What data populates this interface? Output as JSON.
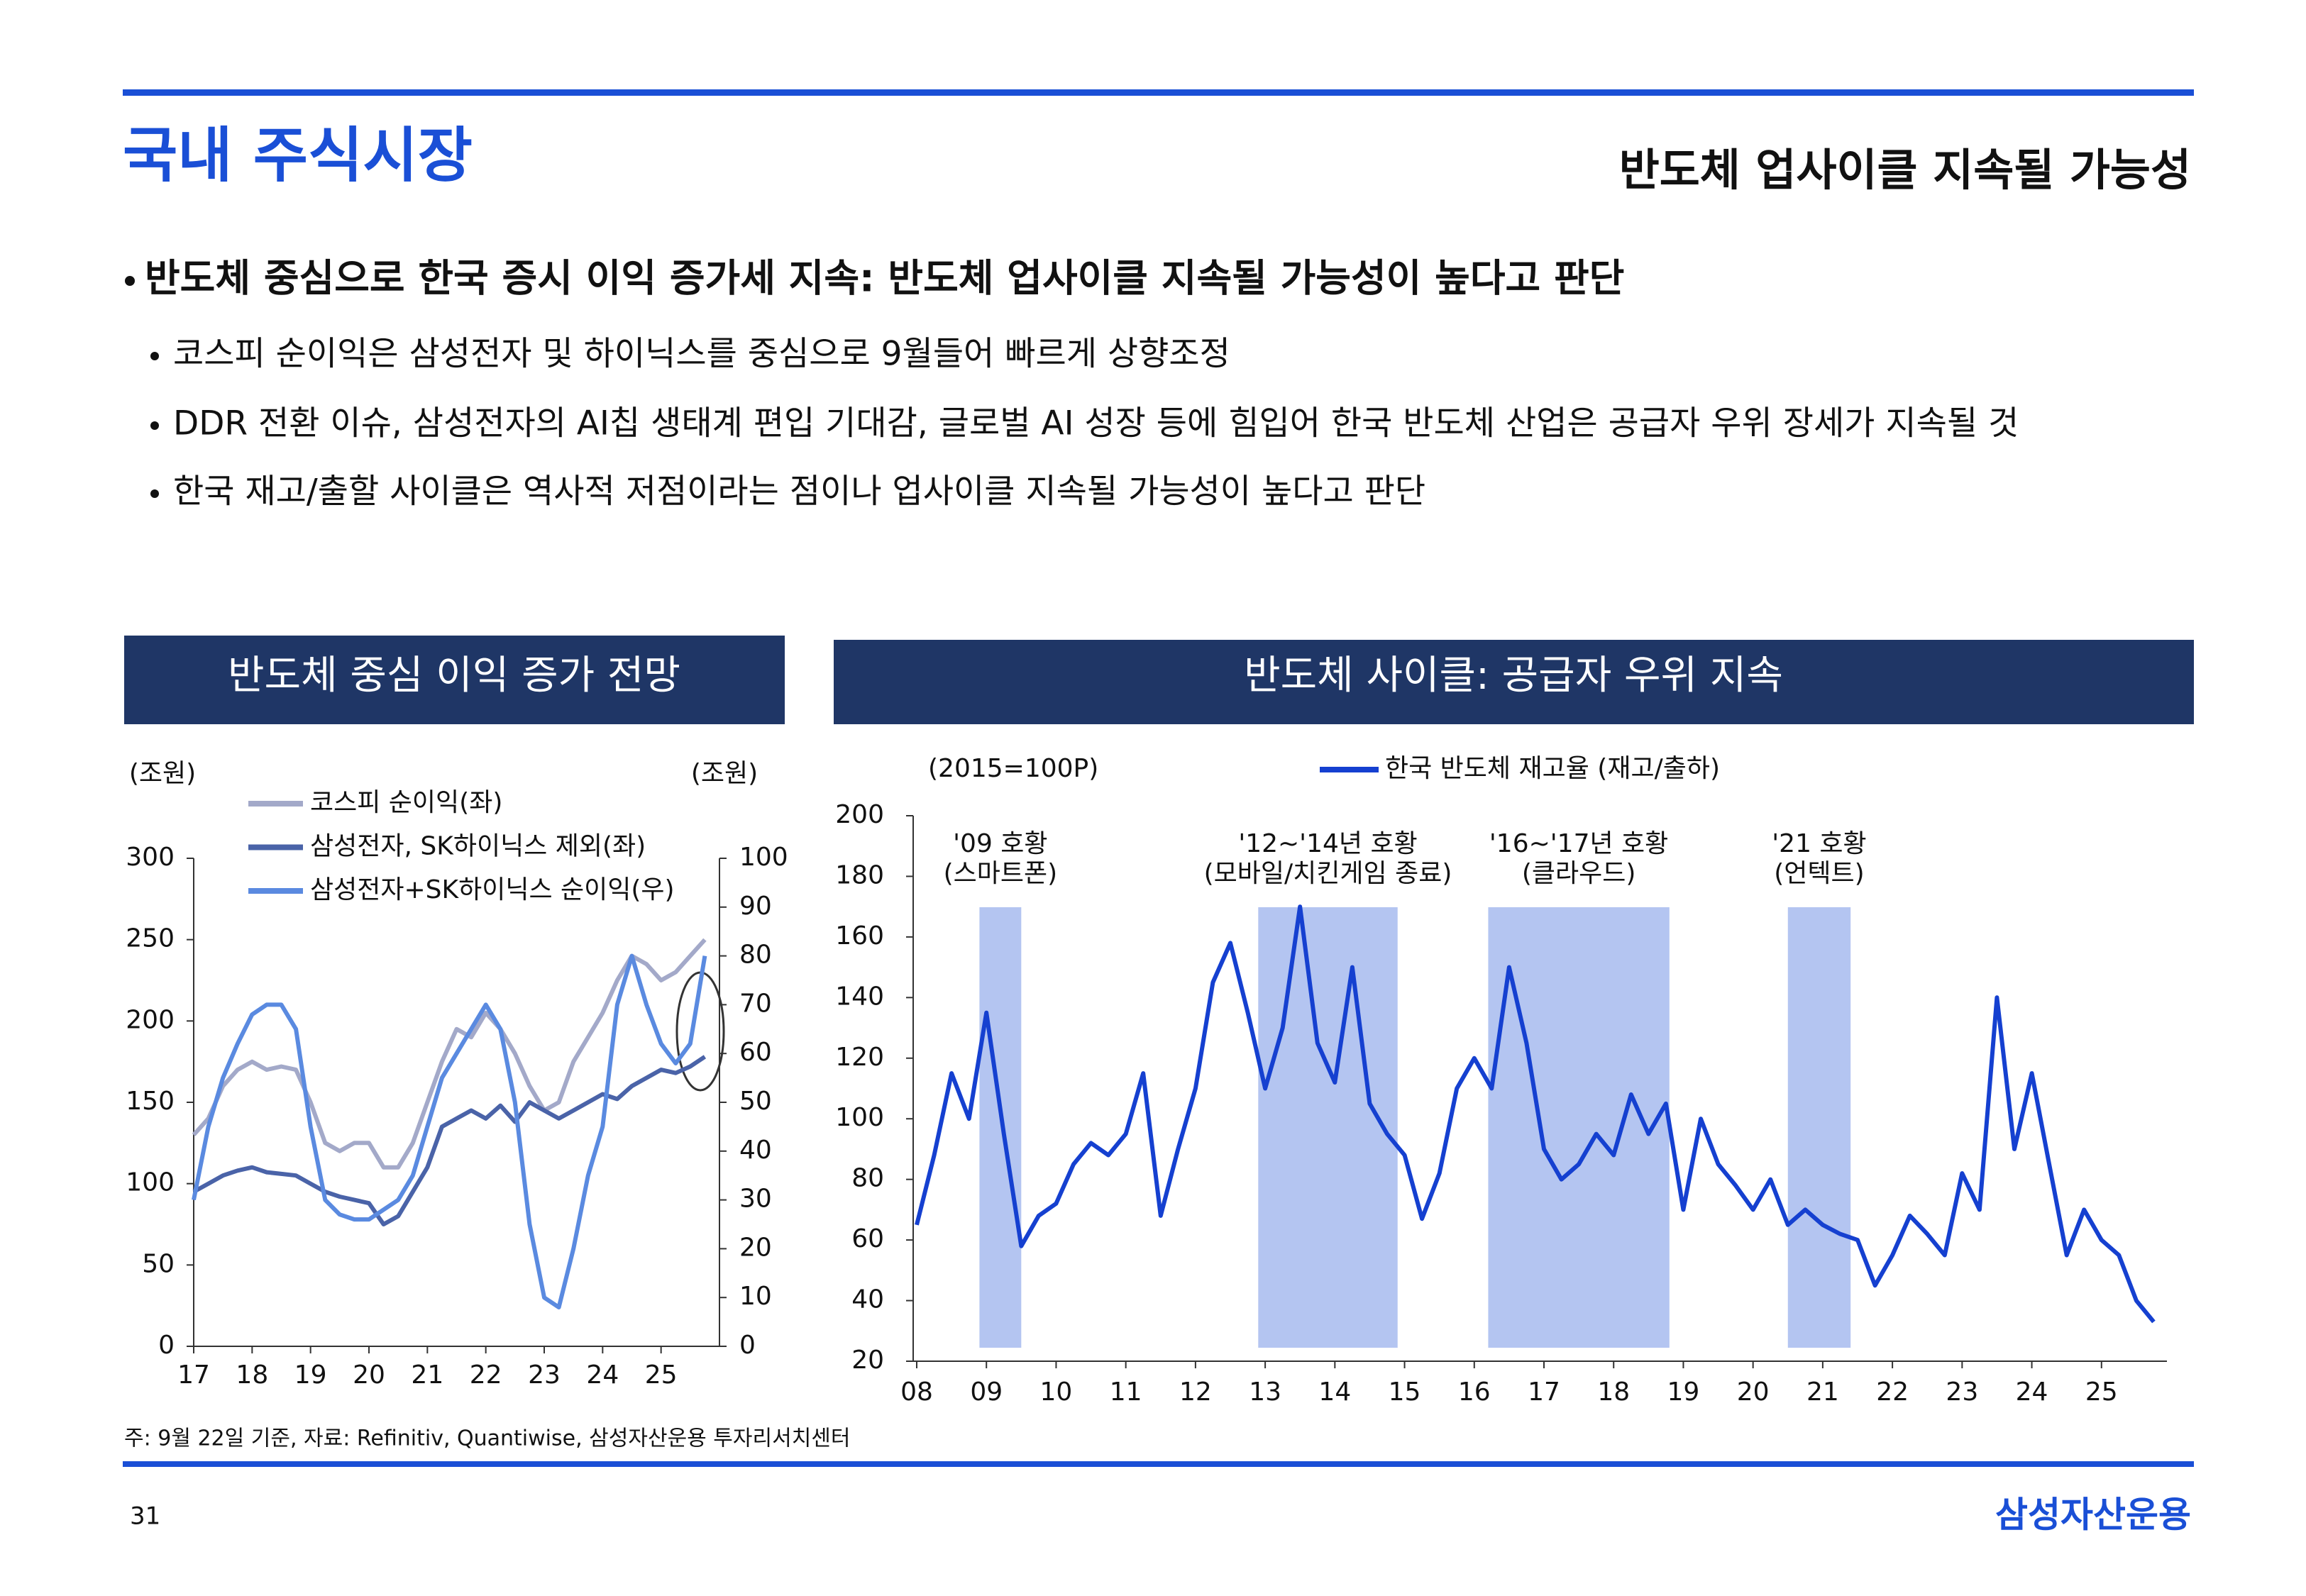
{
  "header": {
    "title": "국내 주식시장",
    "subtitle": "반도체 업사이클 지속될 가능성"
  },
  "bullets": {
    "main": "반도체 중심으로 한국 증시 이익 증가세 지속: 반도체 업사이클 지속될 가능성이 높다고 판단",
    "sub": [
      "코스피 순이익은 삼성전자 및 하이닉스를 중심으로 9월들어 빠르게 상향조정",
      "DDR 전환 이슈, 삼성전자의 AI칩 생태계 편입 기대감, 글로벌 AI 성장 등에 힘입어 한국 반도체 산업은 공급자 우위 장세가 지속될 것",
      "한국 재고/출할 사이클은 역사적 저점이라는 점이나 업사이클 지속될 가능성이 높다고 판단"
    ]
  },
  "chart_data": [
    {
      "type": "line",
      "title": "반도체 중심 이익 증가 전망",
      "ylabel": "(조원)",
      "y2label": "(조원)",
      "x": [
        2017,
        2017.25,
        2017.5,
        2017.75,
        2018,
        2018.25,
        2018.5,
        2018.75,
        2019,
        2019.25,
        2019.5,
        2019.75,
        2020,
        2020.25,
        2020.5,
        2020.75,
        2021,
        2021.25,
        2021.5,
        2021.75,
        2022,
        2022.25,
        2022.5,
        2022.75,
        2023,
        2023.25,
        2023.5,
        2023.75,
        2024,
        2024.25,
        2024.5,
        2024.75,
        2025,
        2025.25,
        2025.5,
        2025.75
      ],
      "xlim": [
        2017,
        2026
      ],
      "xticks": [
        {
          "value": 2017,
          "label": "17"
        },
        {
          "value": 2018,
          "label": "18"
        },
        {
          "value": 2019,
          "label": "19"
        },
        {
          "value": 2020,
          "label": "20"
        },
        {
          "value": 2021,
          "label": "21"
        },
        {
          "value": 2022,
          "label": "22"
        },
        {
          "value": 2023,
          "label": "23"
        },
        {
          "value": 2024,
          "label": "24"
        },
        {
          "value": 2025,
          "label": "25"
        }
      ],
      "ylim": [
        0,
        300
      ],
      "yticks": [
        0,
        50,
        100,
        150,
        200,
        250,
        300
      ],
      "y2lim": [
        0,
        100
      ],
      "y2ticks": [
        0,
        10,
        20,
        30,
        40,
        50,
        60,
        70,
        80,
        90,
        100
      ],
      "series": [
        {
          "name": "코스피 순이익(좌)",
          "color": "#a3a9c9",
          "values": [
            130,
            140,
            160,
            170,
            175,
            170,
            172,
            170,
            150,
            125,
            120,
            125,
            125,
            110,
            110,
            125,
            150,
            175,
            195,
            190,
            205,
            195,
            180,
            160,
            145,
            150,
            175,
            190,
            205,
            225,
            240,
            235,
            225,
            230,
            240,
            250
          ]
        },
        {
          "name": "삼성전자, SK하이닉스 제외(좌)",
          "color": "#4a63a8",
          "values": [
            95,
            100,
            105,
            108,
            110,
            107,
            106,
            105,
            100,
            95,
            92,
            90,
            88,
            75,
            80,
            95,
            110,
            135,
            140,
            145,
            140,
            148,
            138,
            150,
            145,
            140,
            145,
            150,
            155,
            152,
            160,
            165,
            170,
            168,
            172,
            178
          ]
        },
        {
          "name": "삼성전자+SK하이닉스 순이익(우)",
          "color": "#5a8ae0",
          "axis": "y2",
          "values": [
            30,
            45,
            55,
            62,
            68,
            70,
            70,
            65,
            45,
            30,
            27,
            26,
            26,
            28,
            30,
            35,
            45,
            55,
            60,
            65,
            70,
            65,
            50,
            25,
            10,
            8,
            20,
            35,
            45,
            70,
            80,
            70,
            62,
            58,
            62,
            80
          ]
        }
      ]
    },
    {
      "type": "line",
      "title": "반도체 사이클: 공급자 우위 지속",
      "ylabel": "(2015=100P)",
      "x": [
        2008,
        2008.25,
        2008.5,
        2008.75,
        2009,
        2009.25,
        2009.5,
        2009.75,
        2010,
        2010.25,
        2010.5,
        2010.75,
        2011,
        2011.25,
        2011.5,
        2011.75,
        2012,
        2012.25,
        2012.5,
        2012.75,
        2013,
        2013.25,
        2013.5,
        2013.75,
        2014,
        2014.25,
        2014.5,
        2014.75,
        2015,
        2015.25,
        2015.5,
        2015.75,
        2016,
        2016.25,
        2016.5,
        2016.75,
        2017,
        2017.25,
        2017.5,
        2017.75,
        2018,
        2018.25,
        2018.5,
        2018.75,
        2019,
        2019.25,
        2019.5,
        2019.75,
        2020,
        2020.25,
        2020.5,
        2020.75,
        2021,
        2021.25,
        2021.5,
        2021.75,
        2022,
        2022.25,
        2022.5,
        2022.75,
        2023,
        2023.25,
        2023.5,
        2023.75,
        2024,
        2024.25,
        2024.5,
        2024.75,
        2025,
        2025.25,
        2025.5,
        2025.75
      ],
      "xlim": [
        2008,
        2026
      ],
      "xticks": [
        {
          "value": 2008,
          "label": "08"
        },
        {
          "value": 2009,
          "label": "09"
        },
        {
          "value": 2010,
          "label": "10"
        },
        {
          "value": 2011,
          "label": "11"
        },
        {
          "value": 2012,
          "label": "12"
        },
        {
          "value": 2013,
          "label": "13"
        },
        {
          "value": 2014,
          "label": "14"
        },
        {
          "value": 2015,
          "label": "15"
        },
        {
          "value": 2016,
          "label": "16"
        },
        {
          "value": 2017,
          "label": "17"
        },
        {
          "value": 2018,
          "label": "18"
        },
        {
          "value": 2019,
          "label": "19"
        },
        {
          "value": 2020,
          "label": "20"
        },
        {
          "value": 2021,
          "label": "21"
        },
        {
          "value": 2022,
          "label": "22"
        },
        {
          "value": 2023,
          "label": "23"
        },
        {
          "value": 2024,
          "label": "24"
        },
        {
          "value": 2025,
          "label": "25"
        }
      ],
      "ylim": [
        20,
        200
      ],
      "yticks": [
        20,
        40,
        60,
        80,
        100,
        120,
        140,
        160,
        180,
        200
      ],
      "annotations": [
        {
          "lines": [
            "'09 호황",
            "(스마트폰)"
          ],
          "range": [
            2008.9,
            2009.5
          ]
        },
        {
          "lines": [
            "'12~'14년 호황",
            "(모바일/치킨게임 종료)"
          ],
          "range": [
            2012.9,
            2014.9
          ]
        },
        {
          "lines": [
            "'16~'17년 호황",
            "(클라우드)"
          ],
          "range": [
            2016.2,
            2018.8
          ]
        },
        {
          "lines": [
            "'21 호황",
            "(언텍트)"
          ],
          "range": [
            2020.5,
            2021.4
          ]
        }
      ],
      "band_color": "#b4c5f1",
      "series": [
        {
          "name": "한국 반도체 재고율 (재고/출하)",
          "color": "#1540d0",
          "values": [
            65,
            88,
            115,
            100,
            135,
            95,
            58,
            68,
            72,
            85,
            92,
            88,
            95,
            115,
            68,
            90,
            110,
            145,
            158,
            135,
            110,
            130,
            170,
            125,
            112,
            150,
            105,
            95,
            88,
            67,
            82,
            110,
            120,
            110,
            150,
            125,
            90,
            80,
            85,
            95,
            88,
            108,
            95,
            105,
            70,
            100,
            85,
            78,
            70,
            80,
            65,
            70,
            65,
            62,
            60,
            45,
            55,
            68,
            62,
            55,
            82,
            70,
            140,
            90,
            115,
            85,
            55,
            70,
            60,
            55,
            40,
            33
          ]
        }
      ]
    }
  ],
  "footer": {
    "note": "주: 9월 22일 기준, 자료: Refinitiv, Quantiwise, 삼성자산운용 투자리서치센터",
    "page": "31",
    "brand": "삼성자산운용"
  }
}
